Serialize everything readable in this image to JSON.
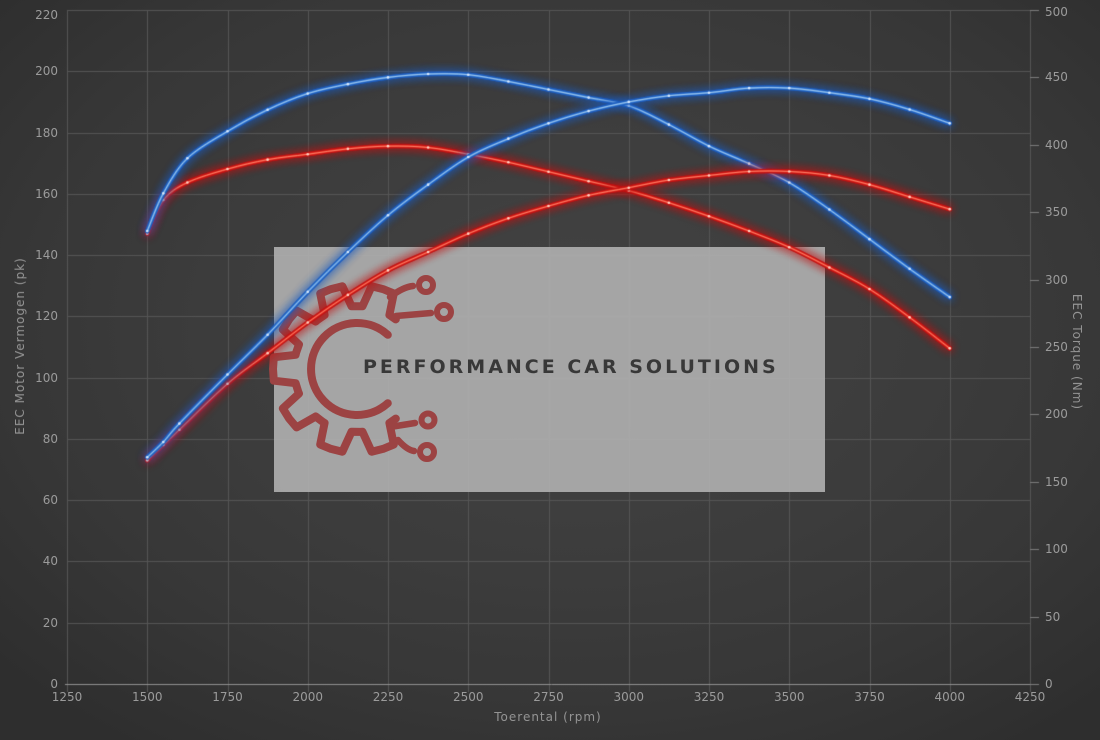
{
  "page": {
    "background": "#3b3b3b"
  },
  "watermark": {
    "text": "PERFORMANCE CAR SOLUTIONS",
    "text_color": "#383838",
    "bg_color": "#b0b0b0",
    "bg_opacity": 0.9,
    "logo_color": "#9c4343",
    "logo": "gear-with-circuit-traces"
  },
  "chart_data": {
    "type": "line",
    "xlabel": "Toerental (rpm)",
    "ylabel_left": "EEC Motor Vermogen (pk)",
    "ylabel_right": "EEC Torque (Nm)",
    "xlim": [
      1250,
      4250
    ],
    "ylim_left": [
      0,
      220
    ],
    "ylim_right": [
      0,
      500
    ],
    "x_ticks": [
      1250,
      1500,
      1750,
      2000,
      2250,
      2500,
      2750,
      3000,
      3250,
      3500,
      3750,
      4000,
      4250
    ],
    "y_left_ticks": [
      0,
      20,
      40,
      60,
      80,
      100,
      120,
      140,
      160,
      180,
      200,
      220
    ],
    "y_right_ticks": [
      0,
      50,
      100,
      150,
      200,
      250,
      300,
      350,
      400,
      450,
      500
    ],
    "grid": true,
    "legend": false,
    "colors": {
      "grid": "#565656",
      "axis_line": "#909090",
      "tick_text": "#9b9b9b",
      "axis_title": "#949494",
      "blue": "#4a8fdb",
      "blue_glow": "#1c5cbd",
      "blue_core": "#aacdf2",
      "blue_dot": "#d9e9fc",
      "red": "#e83125",
      "red_glow": "#c11212",
      "red_core": "#ff8a70",
      "red_dot": "#ffd4c6"
    },
    "series": [
      {
        "id": "torque-red",
        "axis": "right",
        "unit": "Nm",
        "color_key": "red",
        "points": [
          [
            1500,
            334
          ],
          [
            1550,
            359
          ],
          [
            1625,
            372
          ],
          [
            1750,
            382
          ],
          [
            1875,
            389
          ],
          [
            2000,
            393
          ],
          [
            2125,
            397
          ],
          [
            2250,
            399
          ],
          [
            2375,
            398
          ],
          [
            2500,
            393
          ],
          [
            2625,
            387
          ],
          [
            2750,
            380
          ],
          [
            2875,
            373
          ],
          [
            3000,
            366
          ],
          [
            3125,
            357
          ],
          [
            3250,
            347
          ],
          [
            3375,
            336
          ],
          [
            3500,
            324
          ],
          [
            3625,
            309
          ],
          [
            3750,
            293
          ],
          [
            3875,
            272
          ],
          [
            4000,
            249
          ]
        ]
      },
      {
        "id": "torque-blue",
        "axis": "right",
        "unit": "Nm",
        "color_key": "blue",
        "points": [
          [
            1500,
            336
          ],
          [
            1550,
            364
          ],
          [
            1625,
            390
          ],
          [
            1750,
            410
          ],
          [
            1875,
            426
          ],
          [
            2000,
            438
          ],
          [
            2125,
            445
          ],
          [
            2250,
            450
          ],
          [
            2375,
            452.5
          ],
          [
            2500,
            452
          ],
          [
            2625,
            447
          ],
          [
            2750,
            441
          ],
          [
            2875,
            435
          ],
          [
            3000,
            429
          ],
          [
            3125,
            415
          ],
          [
            3250,
            399
          ],
          [
            3375,
            386
          ],
          [
            3500,
            372
          ],
          [
            3625,
            352
          ],
          [
            3750,
            330
          ],
          [
            3875,
            308
          ],
          [
            4000,
            287
          ]
        ]
      },
      {
        "id": "power-red",
        "axis": "left",
        "unit": "pk",
        "color_key": "red",
        "points": [
          [
            1500,
            73
          ],
          [
            1550,
            78
          ],
          [
            1600,
            83
          ],
          [
            1750,
            98
          ],
          [
            1875,
            108
          ],
          [
            2000,
            118
          ],
          [
            2125,
            127
          ],
          [
            2250,
            135
          ],
          [
            2375,
            141
          ],
          [
            2500,
            147
          ],
          [
            2625,
            152
          ],
          [
            2750,
            156
          ],
          [
            2875,
            159.5
          ],
          [
            3000,
            162
          ],
          [
            3125,
            164.5
          ],
          [
            3250,
            166
          ],
          [
            3375,
            167.3
          ],
          [
            3500,
            167.3
          ],
          [
            3625,
            166
          ],
          [
            3750,
            163
          ],
          [
            3875,
            159
          ],
          [
            4000,
            155
          ]
        ]
      },
      {
        "id": "power-blue",
        "axis": "left",
        "unit": "pk",
        "color_key": "blue",
        "points": [
          [
            1500,
            74
          ],
          [
            1550,
            79
          ],
          [
            1600,
            85
          ],
          [
            1750,
            101
          ],
          [
            1875,
            114
          ],
          [
            2000,
            128
          ],
          [
            2125,
            141
          ],
          [
            2250,
            153
          ],
          [
            2375,
            163
          ],
          [
            2500,
            172
          ],
          [
            2625,
            178
          ],
          [
            2750,
            183
          ],
          [
            2875,
            187
          ],
          [
            3000,
            190
          ],
          [
            3125,
            192
          ],
          [
            3250,
            193
          ],
          [
            3375,
            194.5
          ],
          [
            3500,
            194.5
          ],
          [
            3625,
            193
          ],
          [
            3750,
            191
          ],
          [
            3875,
            187.5
          ],
          [
            4000,
            183
          ]
        ]
      }
    ]
  }
}
